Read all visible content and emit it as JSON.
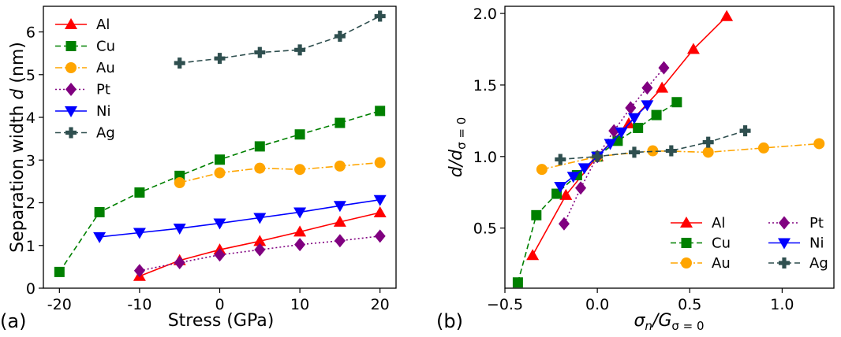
{
  "chart_data": [
    {
      "type": "line",
      "panel_label": "(a)",
      "xlabel": "Stress (GPa)",
      "ylabel_pre": "Separation width ",
      "ylabel_var": "d",
      "ylabel_post": " (nm)",
      "xlim": [
        -22,
        22
      ],
      "ylim": [
        0,
        6.6
      ],
      "xticks": [
        -20,
        -10,
        0,
        10,
        20
      ],
      "yticks": [
        0,
        1,
        2,
        3,
        4,
        5,
        6
      ],
      "legend_position": "top-left",
      "series": [
        {
          "name": "Al",
          "color": "#ff0000",
          "marker": "triangle-up",
          "dash": "solid",
          "x": [
            -10,
            -5,
            0,
            5,
            10,
            15,
            20
          ],
          "y": [
            0.28,
            0.65,
            0.9,
            1.1,
            1.32,
            1.55,
            1.77
          ]
        },
        {
          "name": "Cu",
          "color": "#008000",
          "marker": "square",
          "dash": "dashed",
          "x": [
            -20,
            -15,
            -10,
            -5,
            0,
            5,
            10,
            15,
            20
          ],
          "y": [
            0.38,
            1.78,
            2.24,
            2.63,
            3.01,
            3.32,
            3.6,
            3.87,
            4.15
          ]
        },
        {
          "name": "Au",
          "color": "#ffa500",
          "marker": "circle",
          "dash": "dashdot",
          "x": [
            -5,
            0,
            5,
            10,
            15,
            20
          ],
          "y": [
            2.47,
            2.7,
            2.81,
            2.78,
            2.86,
            2.94
          ]
        },
        {
          "name": "Pt",
          "color": "#800080",
          "marker": "diamond",
          "dash": "dotted",
          "x": [
            -10,
            -5,
            0,
            5,
            10,
            15,
            20
          ],
          "y": [
            0.41,
            0.6,
            0.78,
            0.9,
            1.02,
            1.11,
            1.22
          ]
        },
        {
          "name": "Ni",
          "color": "#0000ff",
          "marker": "triangle-down",
          "dash": "solid",
          "x": [
            -15,
            -10,
            -5,
            0,
            5,
            10,
            15,
            20
          ],
          "y": [
            1.2,
            1.3,
            1.4,
            1.52,
            1.65,
            1.78,
            1.93,
            2.07
          ]
        },
        {
          "name": "Ag",
          "color": "#2f4f4f",
          "marker": "plus",
          "dash": "dashed",
          "x": [
            -5,
            0,
            5,
            10,
            15,
            20
          ],
          "y": [
            5.27,
            5.38,
            5.52,
            5.58,
            5.9,
            6.37
          ]
        }
      ]
    },
    {
      "type": "line",
      "panel_label": "(b)",
      "xlabel_main": "σ",
      "xlabel_sub": "n",
      "xlabel_mid": "/G",
      "xlabel_sub2": "σ = 0",
      "ylabel_main": "d/d",
      "ylabel_sub": "σ = 0",
      "xlim": [
        -0.5,
        1.28
      ],
      "ylim": [
        0.08,
        2.05
      ],
      "xticks": [
        -0.5,
        0.0,
        0.5,
        1.0
      ],
      "xtick_labels": [
        "−0.5",
        "0.0",
        "0.5",
        "1.0"
      ],
      "yticks": [
        0.5,
        1.0,
        1.5,
        2.0
      ],
      "ytick_labels": [
        "0.5",
        "1.0",
        "1.5",
        "2.0"
      ],
      "legend_position": "bottom-right",
      "series": [
        {
          "name": "Al",
          "color": "#ff0000",
          "marker": "triangle-up",
          "dash": "solid",
          "x": [
            -0.35,
            -0.17,
            0.0,
            0.17,
            0.35,
            0.52,
            0.7
          ],
          "y": [
            0.31,
            0.73,
            1.0,
            1.23,
            1.48,
            1.75,
            1.98
          ]
        },
        {
          "name": "Cu",
          "color": "#008000",
          "marker": "square",
          "dash": "dashed",
          "x": [
            -0.43,
            -0.33,
            -0.22,
            -0.11,
            0.0,
            0.11,
            0.22,
            0.32,
            0.43
          ],
          "y": [
            0.12,
            0.59,
            0.74,
            0.87,
            1.0,
            1.11,
            1.2,
            1.29,
            1.38
          ]
        },
        {
          "name": "Au",
          "color": "#ffa500",
          "marker": "circle",
          "dash": "dashdot",
          "x": [
            -0.3,
            0.0,
            0.3,
            0.6,
            0.9,
            1.2
          ],
          "y": [
            0.91,
            1.0,
            1.04,
            1.03,
            1.06,
            1.09
          ]
        },
        {
          "name": "Pt",
          "color": "#800080",
          "marker": "diamond",
          "dash": "dotted",
          "x": [
            -0.18,
            -0.09,
            0.0,
            0.09,
            0.18,
            0.27,
            0.36
          ],
          "y": [
            0.53,
            0.78,
            1.0,
            1.18,
            1.34,
            1.48,
            1.62
          ]
        },
        {
          "name": "Ni",
          "color": "#0000ff",
          "marker": "triangle-down",
          "dash": "solid",
          "x": [
            -0.2,
            -0.13,
            -0.07,
            0.0,
            0.07,
            0.13,
            0.2,
            0.27
          ],
          "y": [
            0.79,
            0.86,
            0.92,
            1.0,
            1.09,
            1.17,
            1.27,
            1.36
          ]
        },
        {
          "name": "Ag",
          "color": "#2f4f4f",
          "marker": "plus",
          "dash": "dashed",
          "x": [
            -0.2,
            0.0,
            0.2,
            0.4,
            0.6,
            0.8
          ],
          "y": [
            0.98,
            1.0,
            1.03,
            1.04,
            1.1,
            1.18
          ]
        }
      ]
    }
  ]
}
